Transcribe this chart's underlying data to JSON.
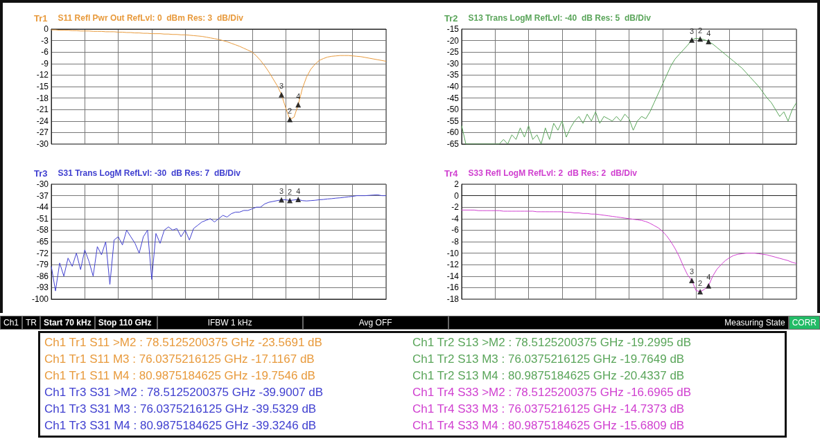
{
  "chart_data": [
    {
      "type": "line",
      "title": "Tr1",
      "subtitle": "S11 Refl Pwr Out RefLvl: 0  dBm Res: 3  dB/Div",
      "ylim": [
        -30,
        0
      ],
      "yticks": [
        -30,
        -27,
        -24,
        -21,
        -18,
        -15,
        -12,
        -9,
        -6,
        -3,
        0
      ],
      "grid": true,
      "tick_labels": "y",
      "categories": [
        null,
        null,
        null,
        null,
        null,
        null,
        null,
        null,
        null,
        null,
        null,
        null,
        null,
        null,
        null,
        null,
        null,
        null,
        null,
        null,
        null,
        null,
        null,
        null,
        null,
        null,
        null,
        null,
        null,
        null,
        null,
        null,
        null,
        null,
        null,
        null,
        null,
        null,
        null,
        null,
        null,
        null,
        null,
        null,
        null,
        null,
        null,
        null,
        null,
        null,
        null,
        null,
        null,
        null,
        null,
        null,
        null,
        null,
        null,
        null,
        null,
        null,
        null,
        null,
        null,
        null,
        null,
        null,
        null,
        null,
        null,
        null,
        null,
        null,
        null,
        null,
        null,
        null,
        null,
        null,
        null
      ],
      "series": [
        {
          "color": "#e89a3c",
          "values": [
            -0.2,
            -0.2,
            -0.3,
            -0.3,
            -0.3,
            -0.4,
            -0.4,
            -0.5,
            -0.5,
            -0.5,
            -0.6,
            -0.6,
            -0.6,
            -0.7,
            -0.7,
            -0.7,
            -0.8,
            -0.8,
            -0.9,
            -0.9,
            -1,
            -1,
            -1.1,
            -1.1,
            -1.2,
            -1.2,
            -1.2,
            -1.3,
            -1.3,
            -1.4,
            -1.4,
            -1.5,
            -1.5,
            -1.6,
            -1.7,
            -1.8,
            -1.9,
            -2.1,
            -2.3,
            -2.5,
            -2.7,
            -3,
            -3.3,
            -3.7,
            -4.1,
            -4.5,
            -5,
            -5.5,
            -6,
            -7,
            -8.2,
            -9.6,
            -11.2,
            -13,
            -14.8,
            -17.1167,
            -20.5,
            -23.5691,
            -23,
            -19.7546,
            -15.5,
            -12.5,
            -10.5,
            -9.2,
            -8.2,
            -7.7,
            -7.3,
            -7.1,
            -7,
            -6.9,
            -6.9,
            -6.9,
            -7,
            -7.1,
            -7.2,
            -7.4,
            -7.6,
            -7.8,
            -8,
            -8.2,
            -8.4
          ]
        },
        {
          "type": "scatter",
          "name": "3",
          "color": "#000000",
          "marker": "triangle",
          "values": [
            null,
            null,
            null,
            null,
            null,
            null,
            null,
            null,
            null,
            null,
            null,
            null,
            null,
            null,
            null,
            null,
            null,
            null,
            null,
            null,
            null,
            null,
            null,
            null,
            null,
            null,
            null,
            null,
            null,
            null,
            null,
            null,
            null,
            null,
            null,
            null,
            null,
            null,
            null,
            null,
            null,
            null,
            null,
            null,
            null,
            null,
            null,
            null,
            null,
            null,
            null,
            null,
            null,
            null,
            null,
            -17.1167,
            null,
            null,
            null,
            null,
            null,
            null,
            null,
            null,
            null,
            null,
            null,
            null,
            null,
            null,
            null,
            null,
            null,
            null,
            null,
            null,
            null,
            null,
            null,
            null,
            null
          ]
        },
        {
          "type": "scatter",
          "name": "2",
          "color": "#000000",
          "marker": "triangle",
          "values": [
            null,
            null,
            null,
            null,
            null,
            null,
            null,
            null,
            null,
            null,
            null,
            null,
            null,
            null,
            null,
            null,
            null,
            null,
            null,
            null,
            null,
            null,
            null,
            null,
            null,
            null,
            null,
            null,
            null,
            null,
            null,
            null,
            null,
            null,
            null,
            null,
            null,
            null,
            null,
            null,
            null,
            null,
            null,
            null,
            null,
            null,
            null,
            null,
            null,
            null,
            null,
            null,
            null,
            null,
            null,
            null,
            null,
            -23.5691,
            null,
            null,
            null,
            null,
            null,
            null,
            null,
            null,
            null,
            null,
            null,
            null,
            null,
            null,
            null,
            null,
            null,
            null,
            null,
            null,
            null,
            null,
            null
          ]
        },
        {
          "type": "scatter",
          "name": "4",
          "color": "#000000",
          "marker": "triangle",
          "values": [
            null,
            null,
            null,
            null,
            null,
            null,
            null,
            null,
            null,
            null,
            null,
            null,
            null,
            null,
            null,
            null,
            null,
            null,
            null,
            null,
            null,
            null,
            null,
            null,
            null,
            null,
            null,
            null,
            null,
            null,
            null,
            null,
            null,
            null,
            null,
            null,
            null,
            null,
            null,
            null,
            null,
            null,
            null,
            null,
            null,
            null,
            null,
            null,
            null,
            null,
            null,
            null,
            null,
            null,
            null,
            null,
            null,
            null,
            null,
            -19.7546,
            null,
            null,
            null,
            null,
            null,
            null,
            null,
            null,
            null,
            null,
            null,
            null,
            null,
            null,
            null,
            null,
            null,
            null,
            null,
            null,
            null
          ]
        }
      ]
    },
    {
      "type": "line",
      "title": "Tr2",
      "subtitle": "S13 Trans LogM RefLvl: -40  dB Res: 5  dB/Div",
      "ylim": [
        -65,
        -15
      ],
      "yticks": [
        -65,
        -60,
        -55,
        -50,
        -45,
        -40,
        -35,
        -30,
        -25,
        -20,
        -15
      ],
      "grid": true,
      "tick_labels": "y",
      "categories": [
        null,
        null,
        null,
        null,
        null,
        null,
        null,
        null,
        null,
        null,
        null,
        null,
        null,
        null,
        null,
        null,
        null,
        null,
        null,
        null,
        null,
        null,
        null,
        null,
        null,
        null,
        null,
        null,
        null,
        null,
        null,
        null,
        null,
        null,
        null,
        null,
        null,
        null,
        null,
        null,
        null,
        null,
        null,
        null,
        null,
        null,
        null,
        null,
        null,
        null,
        null,
        null,
        null,
        null,
        null,
        null,
        null,
        null,
        null,
        null,
        null,
        null,
        null,
        null,
        null,
        null,
        null,
        null,
        null,
        null,
        null,
        null,
        null,
        null,
        null,
        null,
        null,
        null,
        null,
        null,
        null
      ],
      "series": [
        {
          "color": "#5aa55a",
          "values": [
            -57,
            -65,
            -65,
            -65,
            -65,
            -65,
            -65,
            -65,
            -65,
            -65,
            -63,
            -65,
            -61,
            -63,
            -58,
            -62,
            -57,
            -63,
            -61,
            -65,
            -58,
            -63,
            -56,
            -59,
            -55,
            -62,
            -58,
            -55,
            -53,
            -56,
            -52,
            -55,
            -51,
            -56,
            -53,
            -54,
            -55,
            -53,
            -55,
            -52,
            -54,
            -59,
            -55,
            -53,
            -54,
            -51,
            -47,
            -43,
            -39,
            -35,
            -31,
            -28,
            -26,
            -24,
            -22,
            -19.7649,
            -19,
            -19.2995,
            -19.6,
            -20.4337,
            -21.5,
            -23,
            -24.5,
            -26,
            -27.5,
            -29,
            -30.5,
            -32,
            -34,
            -36,
            -38,
            -40,
            -42.5,
            -45,
            -47,
            -50,
            -53,
            -51,
            -55,
            -50,
            -47
          ]
        },
        {
          "type": "scatter",
          "name": "3",
          "color": "#000000",
          "marker": "triangle",
          "values": [
            null,
            null,
            null,
            null,
            null,
            null,
            null,
            null,
            null,
            null,
            null,
            null,
            null,
            null,
            null,
            null,
            null,
            null,
            null,
            null,
            null,
            null,
            null,
            null,
            null,
            null,
            null,
            null,
            null,
            null,
            null,
            null,
            null,
            null,
            null,
            null,
            null,
            null,
            null,
            null,
            null,
            null,
            null,
            null,
            null,
            null,
            null,
            null,
            null,
            null,
            null,
            null,
            null,
            null,
            null,
            -19.7649,
            null,
            null,
            null,
            null,
            null,
            null,
            null,
            null,
            null,
            null,
            null,
            null,
            null,
            null,
            null,
            null,
            null,
            null,
            null,
            null,
            null,
            null,
            null,
            null,
            null
          ]
        },
        {
          "type": "scatter",
          "name": "2",
          "color": "#000000",
          "marker": "triangle",
          "values": [
            null,
            null,
            null,
            null,
            null,
            null,
            null,
            null,
            null,
            null,
            null,
            null,
            null,
            null,
            null,
            null,
            null,
            null,
            null,
            null,
            null,
            null,
            null,
            null,
            null,
            null,
            null,
            null,
            null,
            null,
            null,
            null,
            null,
            null,
            null,
            null,
            null,
            null,
            null,
            null,
            null,
            null,
            null,
            null,
            null,
            null,
            null,
            null,
            null,
            null,
            null,
            null,
            null,
            null,
            null,
            null,
            null,
            -19.2995,
            null,
            null,
            null,
            null,
            null,
            null,
            null,
            null,
            null,
            null,
            null,
            null,
            null,
            null,
            null,
            null,
            null,
            null,
            null,
            null,
            null,
            null,
            null
          ]
        },
        {
          "type": "scatter",
          "name": "4",
          "color": "#000000",
          "marker": "triangle",
          "values": [
            null,
            null,
            null,
            null,
            null,
            null,
            null,
            null,
            null,
            null,
            null,
            null,
            null,
            null,
            null,
            null,
            null,
            null,
            null,
            null,
            null,
            null,
            null,
            null,
            null,
            null,
            null,
            null,
            null,
            null,
            null,
            null,
            null,
            null,
            null,
            null,
            null,
            null,
            null,
            null,
            null,
            null,
            null,
            null,
            null,
            null,
            null,
            null,
            null,
            null,
            null,
            null,
            null,
            null,
            null,
            null,
            null,
            null,
            null,
            -20.4337,
            null,
            null,
            null,
            null,
            null,
            null,
            null,
            null,
            null,
            null,
            null,
            null,
            null,
            null,
            null,
            null,
            null,
            null,
            null,
            null,
            null
          ]
        }
      ]
    },
    {
      "type": "line",
      "title": "Tr3",
      "subtitle": "S31 Trans LogM RefLvl: -30  dB Res: 7  dB/Div",
      "ylim": [
        -100,
        -30
      ],
      "yticks": [
        -100,
        -93,
        -86,
        -79,
        -72,
        -65,
        -58,
        -51,
        -44,
        -37,
        -30
      ],
      "grid": true,
      "tick_labels": "y",
      "categories": [
        null,
        null,
        null,
        null,
        null,
        null,
        null,
        null,
        null,
        null,
        null,
        null,
        null,
        null,
        null,
        null,
        null,
        null,
        null,
        null,
        null,
        null,
        null,
        null,
        null,
        null,
        null,
        null,
        null,
        null,
        null,
        null,
        null,
        null,
        null,
        null,
        null,
        null,
        null,
        null,
        null,
        null,
        null,
        null,
        null,
        null,
        null,
        null,
        null,
        null,
        null,
        null,
        null,
        null,
        null,
        null,
        null,
        null,
        null,
        null,
        null,
        null,
        null,
        null,
        null,
        null,
        null,
        null,
        null,
        null,
        null,
        null,
        null,
        null,
        null,
        null,
        null,
        null,
        null,
        null,
        null
      ],
      "series": [
        {
          "color": "#4040d0",
          "values": [
            -80,
            -95,
            -78,
            -86,
            -75,
            -80,
            -72,
            -82,
            -70,
            -77,
            -86,
            -68,
            -73,
            -65,
            -91,
            -64,
            -62,
            -67,
            -58,
            -62,
            -66,
            -72,
            -62,
            -58,
            -88,
            -60,
            -66,
            -58,
            -56,
            -58,
            -57,
            -62,
            -58,
            -64,
            -57,
            -55,
            -53,
            -52,
            -51,
            -53,
            -51,
            -49,
            -50,
            -48,
            -47,
            -47,
            -46,
            -46,
            -45,
            -44,
            -44,
            -42,
            -41,
            -40.5,
            -40,
            -39.5329,
            -39.5,
            -39.9007,
            -39.6,
            -39.3246,
            -40,
            -40.2,
            -40,
            -39.8,
            -39.5,
            -39.3,
            -39,
            -38.8,
            -38.5,
            -38.3,
            -38,
            -37.7,
            -37.4,
            -37,
            -37,
            -37,
            -36.8,
            -36.6,
            -36.5,
            -37,
            -37
          ]
        },
        {
          "type": "scatter",
          "name": "3",
          "color": "#000000",
          "marker": "triangle",
          "values": [
            null,
            null,
            null,
            null,
            null,
            null,
            null,
            null,
            null,
            null,
            null,
            null,
            null,
            null,
            null,
            null,
            null,
            null,
            null,
            null,
            null,
            null,
            null,
            null,
            null,
            null,
            null,
            null,
            null,
            null,
            null,
            null,
            null,
            null,
            null,
            null,
            null,
            null,
            null,
            null,
            null,
            null,
            null,
            null,
            null,
            null,
            null,
            null,
            null,
            null,
            null,
            null,
            null,
            null,
            null,
            -39.5329,
            null,
            null,
            null,
            null,
            null,
            null,
            null,
            null,
            null,
            null,
            null,
            null,
            null,
            null,
            null,
            null,
            null,
            null,
            null,
            null,
            null,
            null,
            null,
            null,
            null
          ]
        },
        {
          "type": "scatter",
          "name": "2",
          "color": "#000000",
          "marker": "triangle",
          "values": [
            null,
            null,
            null,
            null,
            null,
            null,
            null,
            null,
            null,
            null,
            null,
            null,
            null,
            null,
            null,
            null,
            null,
            null,
            null,
            null,
            null,
            null,
            null,
            null,
            null,
            null,
            null,
            null,
            null,
            null,
            null,
            null,
            null,
            null,
            null,
            null,
            null,
            null,
            null,
            null,
            null,
            null,
            null,
            null,
            null,
            null,
            null,
            null,
            null,
            null,
            null,
            null,
            null,
            null,
            null,
            null,
            null,
            -39.9007,
            null,
            null,
            null,
            null,
            null,
            null,
            null,
            null,
            null,
            null,
            null,
            null,
            null,
            null,
            null,
            null,
            null,
            null,
            null,
            null,
            null,
            null,
            null
          ]
        },
        {
          "type": "scatter",
          "name": "4",
          "color": "#000000",
          "marker": "triangle",
          "values": [
            null,
            null,
            null,
            null,
            null,
            null,
            null,
            null,
            null,
            null,
            null,
            null,
            null,
            null,
            null,
            null,
            null,
            null,
            null,
            null,
            null,
            null,
            null,
            null,
            null,
            null,
            null,
            null,
            null,
            null,
            null,
            null,
            null,
            null,
            null,
            null,
            null,
            null,
            null,
            null,
            null,
            null,
            null,
            null,
            null,
            null,
            null,
            null,
            null,
            null,
            null,
            null,
            null,
            null,
            null,
            null,
            null,
            null,
            null,
            -39.3246,
            null,
            null,
            null,
            null,
            null,
            null,
            null,
            null,
            null,
            null,
            null,
            null,
            null,
            null,
            null,
            null,
            null,
            null,
            null,
            null,
            null
          ]
        }
      ]
    },
    {
      "type": "line",
      "title": "Tr4",
      "subtitle": "S33 Refl LogM RefLvl: 2  dB Res: 2  dB/Div",
      "ylim": [
        -18,
        2
      ],
      "yticks": [
        -18,
        -16,
        -14,
        -12,
        -10,
        -8,
        -6,
        -4,
        -2,
        0,
        2
      ],
      "grid": true,
      "tick_labels": "y",
      "categories": [
        null,
        null,
        null,
        null,
        null,
        null,
        null,
        null,
        null,
        null,
        null,
        null,
        null,
        null,
        null,
        null,
        null,
        null,
        null,
        null,
        null,
        null,
        null,
        null,
        null,
        null,
        null,
        null,
        null,
        null,
        null,
        null,
        null,
        null,
        null,
        null,
        null,
        null,
        null,
        null,
        null,
        null,
        null,
        null,
        null,
        null,
        null,
        null,
        null,
        null,
        null,
        null,
        null,
        null,
        null,
        null,
        null,
        null,
        null,
        null,
        null,
        null,
        null,
        null,
        null,
        null,
        null,
        null,
        null,
        null,
        null,
        null,
        null,
        null,
        null,
        null,
        null,
        null,
        null,
        null,
        null
      ],
      "series": [
        {
          "color": "#d040d0",
          "values": [
            -2.5,
            -2.5,
            -2.5,
            -2.5,
            -2.6,
            -2.6,
            -2.6,
            -2.6,
            -2.6,
            -2.6,
            -2.7,
            -2.7,
            -2.7,
            -2.7,
            -2.7,
            -2.7,
            -2.7,
            -2.7,
            -2.8,
            -2.8,
            -2.8,
            -2.8,
            -2.8,
            -2.8,
            -2.8,
            -2.9,
            -2.9,
            -3,
            -3,
            -3.1,
            -3.1,
            -3.2,
            -3.2,
            -3.3,
            -3.4,
            -3.5,
            -3.6,
            -3.7,
            -3.8,
            -3.9,
            -4,
            -4.1,
            -4.2,
            -4.3,
            -4.5,
            -4.8,
            -5.2,
            -5.6,
            -6.2,
            -7,
            -8,
            -9.2,
            -10.6,
            -12.3,
            -13.8,
            -14.7373,
            -16.5,
            -16.6965,
            -16.3,
            -15.6809,
            -14,
            -12.8,
            -12,
            -11.3,
            -10.8,
            -10.4,
            -10.2,
            -10.1,
            -10,
            -10,
            -10,
            -10.1,
            -10.2,
            -10.3,
            -10.5,
            -10.7,
            -10.9,
            -11.1,
            -11.3,
            -11.6,
            -11.8
          ]
        },
        {
          "type": "scatter",
          "name": "3",
          "color": "#000000",
          "marker": "triangle",
          "values": [
            null,
            null,
            null,
            null,
            null,
            null,
            null,
            null,
            null,
            null,
            null,
            null,
            null,
            null,
            null,
            null,
            null,
            null,
            null,
            null,
            null,
            null,
            null,
            null,
            null,
            null,
            null,
            null,
            null,
            null,
            null,
            null,
            null,
            null,
            null,
            null,
            null,
            null,
            null,
            null,
            null,
            null,
            null,
            null,
            null,
            null,
            null,
            null,
            null,
            null,
            null,
            null,
            null,
            null,
            null,
            -14.7373,
            null,
            null,
            null,
            null,
            null,
            null,
            null,
            null,
            null,
            null,
            null,
            null,
            null,
            null,
            null,
            null,
            null,
            null,
            null,
            null,
            null,
            null,
            null,
            null,
            null
          ]
        },
        {
          "type": "scatter",
          "name": "2",
          "color": "#000000",
          "marker": "triangle",
          "values": [
            null,
            null,
            null,
            null,
            null,
            null,
            null,
            null,
            null,
            null,
            null,
            null,
            null,
            null,
            null,
            null,
            null,
            null,
            null,
            null,
            null,
            null,
            null,
            null,
            null,
            null,
            null,
            null,
            null,
            null,
            null,
            null,
            null,
            null,
            null,
            null,
            null,
            null,
            null,
            null,
            null,
            null,
            null,
            null,
            null,
            null,
            null,
            null,
            null,
            null,
            null,
            null,
            null,
            null,
            null,
            null,
            null,
            -16.6965,
            null,
            null,
            null,
            null,
            null,
            null,
            null,
            null,
            null,
            null,
            null,
            null,
            null,
            null,
            null,
            null,
            null,
            null,
            null,
            null,
            null,
            null,
            null
          ]
        },
        {
          "type": "scatter",
          "name": "4",
          "color": "#000000",
          "marker": "triangle",
          "values": [
            null,
            null,
            null,
            null,
            null,
            null,
            null,
            null,
            null,
            null,
            null,
            null,
            null,
            null,
            null,
            null,
            null,
            null,
            null,
            null,
            null,
            null,
            null,
            null,
            null,
            null,
            null,
            null,
            null,
            null,
            null,
            null,
            null,
            null,
            null,
            null,
            null,
            null,
            null,
            null,
            null,
            null,
            null,
            null,
            null,
            null,
            null,
            null,
            null,
            null,
            null,
            null,
            null,
            null,
            null,
            null,
            null,
            null,
            null,
            -15.6809,
            null,
            null,
            null,
            null,
            null,
            null,
            null,
            null,
            null,
            null,
            null,
            null,
            null,
            null,
            null,
            null,
            null,
            null,
            null,
            null,
            null
          ]
        }
      ]
    },
    {
      "type": "other",
      "annotations": [
        "Ch1",
        "TR",
        "Start 70 kHz",
        "Stop 110 GHz",
        "IFBW 1 kHz",
        "Avg OFF",
        "Measuring State",
        "CORR"
      ]
    },
    {
      "type": "other",
      "annotations": [
        "Ch1 Tr1 S11 >M2 : 78.5125200375 GHz -23.5691 dB",
        "Ch1 Tr2 S13 >M2 : 78.5125200375 GHz -19.2995 dB",
        "Ch1 Tr1 S11 M3 : 76.0375216125 GHz -17.1167 dB",
        "Ch1 Tr2 S13 M3 : 76.0375216125 GHz -19.7649 dB",
        "Ch1 Tr1 S11 M4 : 80.9875184625 GHz -19.7546 dB",
        "Ch1 Tr2 S13 M4 : 80.9875184625 GHz -20.4337 dB",
        "Ch1 Tr3 S31 >M2 : 78.5125200375 GHz -39.9007 dB",
        "Ch1 Tr4 S33 >M2 : 78.5125200375 GHz -16.6965 dB",
        "Ch1 Tr3 S31 M3 : 76.0375216125 GHz -39.5329 dB",
        "Ch1 Tr4 S33 M3 : 76.0375216125 GHz -14.7373 dB",
        "Ch1 Tr3 S31 M4 : 80.9875184625 GHz -39.3246 dB",
        "Ch1 Tr4 S33 M4 : 80.9875184625 GHz -15.6809 dB"
      ]
    }
  ]
}
